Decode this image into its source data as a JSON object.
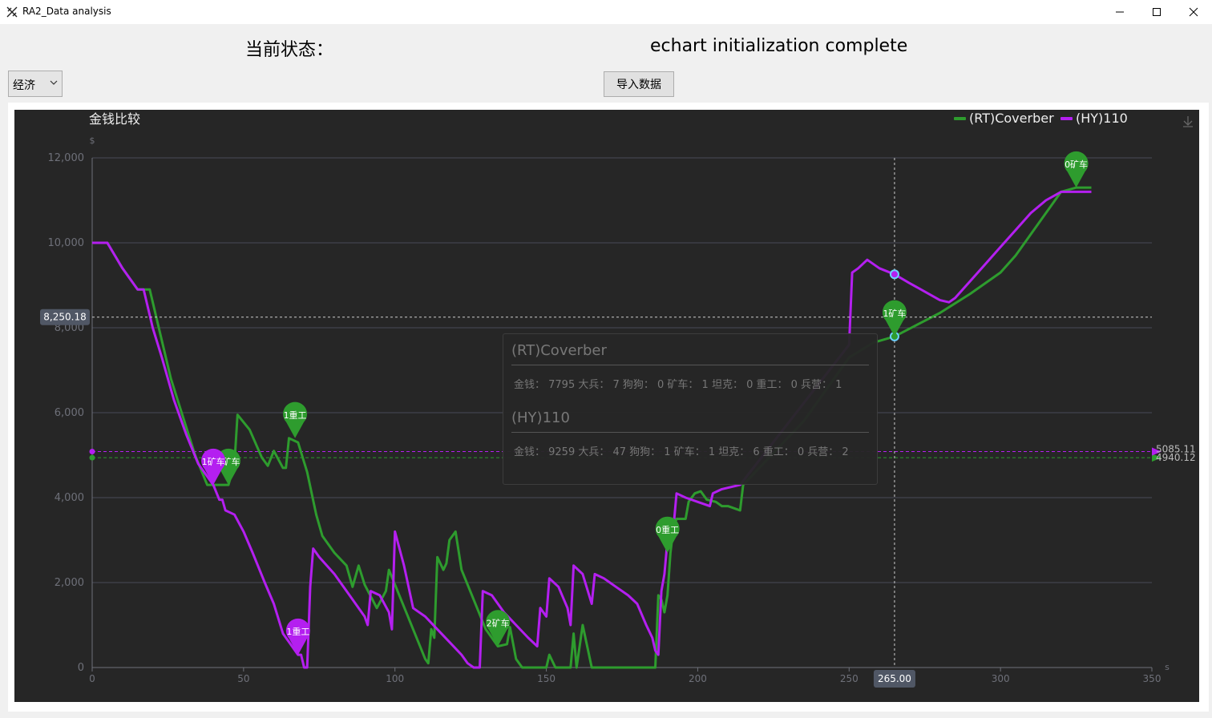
{
  "window": {
    "title": "RA2_Data analysis"
  },
  "status": {
    "label": "当前状态：",
    "text": "echart initialization complete"
  },
  "controls": {
    "select_value": "经济",
    "import_label": "导入数据"
  },
  "colors": {
    "green": "#2e9c2e",
    "purple": "#b41ff0",
    "background": "#262626"
  },
  "chart_data": {
    "type": "line",
    "title": "金钱比较",
    "ylabel": "$",
    "xlabel": "s",
    "xlim": [
      0,
      350
    ],
    "ylim": [
      0,
      12000
    ],
    "xticks": [
      0,
      50,
      100,
      150,
      200,
      250,
      300,
      350
    ],
    "yticks": [
      0,
      2000,
      4000,
      6000,
      8000,
      10000,
      12000
    ],
    "x_tick_labels": [
      "0",
      "50",
      "100",
      "150",
      "200",
      "250",
      "300",
      "350"
    ],
    "y_tick_labels": [
      "0",
      "2,000",
      "4,000",
      "6,000",
      "8,000",
      "10,000",
      "12,000"
    ],
    "legend_position": "top-right",
    "series": [
      {
        "name": "(RT)Coverber",
        "color": "#2e9c2e",
        "points": [
          [
            0,
            10000
          ],
          [
            5,
            10000
          ],
          [
            10,
            9400
          ],
          [
            15,
            8900
          ],
          [
            19,
            8900
          ],
          [
            22,
            8000
          ],
          [
            26,
            6800
          ],
          [
            30,
            5900
          ],
          [
            34,
            5000
          ],
          [
            38,
            4300
          ],
          [
            40,
            4300
          ],
          [
            45,
            4300
          ],
          [
            47,
            4800
          ],
          [
            48,
            5950
          ],
          [
            52,
            5600
          ],
          [
            56,
            4950
          ],
          [
            58,
            4750
          ],
          [
            60,
            5100
          ],
          [
            63,
            4700
          ],
          [
            64,
            4700
          ],
          [
            65,
            5400
          ],
          [
            68,
            5300
          ],
          [
            71,
            4600
          ],
          [
            74,
            3600
          ],
          [
            76,
            3100
          ],
          [
            80,
            2700
          ],
          [
            84,
            2400
          ],
          [
            86,
            1900
          ],
          [
            88,
            2400
          ],
          [
            90,
            1950
          ],
          [
            94,
            1400
          ],
          [
            97,
            1800
          ],
          [
            98,
            2300
          ],
          [
            102,
            1600
          ],
          [
            106,
            900
          ],
          [
            110,
            200
          ],
          [
            111,
            100
          ],
          [
            112,
            900
          ],
          [
            113,
            700
          ],
          [
            114,
            2600
          ],
          [
            116,
            2300
          ],
          [
            117,
            2450
          ],
          [
            118,
            3000
          ],
          [
            120,
            3200
          ],
          [
            122,
            2300
          ],
          [
            126,
            1600
          ],
          [
            130,
            900
          ],
          [
            134,
            500
          ],
          [
            137,
            550
          ],
          [
            138,
            950
          ],
          [
            140,
            200
          ],
          [
            142,
            0
          ],
          [
            150,
            0
          ],
          [
            151,
            300
          ],
          [
            153,
            0
          ],
          [
            158,
            0
          ],
          [
            159,
            800
          ],
          [
            160,
            0
          ],
          [
            162,
            1000
          ],
          [
            165,
            0
          ],
          [
            175,
            0
          ],
          [
            185,
            0
          ],
          [
            186,
            0
          ],
          [
            187,
            1700
          ],
          [
            188,
            1600
          ],
          [
            189,
            1300
          ],
          [
            190,
            1700
          ],
          [
            191,
            2700
          ],
          [
            192,
            3300
          ],
          [
            193,
            3500
          ],
          [
            196,
            3500
          ],
          [
            197,
            3900
          ],
          [
            199,
            4100
          ],
          [
            201,
            4150
          ],
          [
            203,
            3950
          ],
          [
            206,
            3900
          ],
          [
            208,
            3800
          ],
          [
            210,
            3800
          ],
          [
            214,
            3700
          ],
          [
            215,
            4300
          ],
          [
            235,
            5800
          ],
          [
            250,
            7300
          ],
          [
            258,
            7650
          ],
          [
            265,
            7795
          ],
          [
            280,
            8350
          ],
          [
            290,
            8800
          ],
          [
            300,
            9300
          ],
          [
            305,
            9700
          ],
          [
            310,
            10200
          ],
          [
            315,
            10700
          ],
          [
            320,
            11200
          ],
          [
            325,
            11300
          ],
          [
            330,
            11300
          ]
        ],
        "markers": [
          {
            "x": 45,
            "y": 4300,
            "label": "1矿车"
          },
          {
            "x": 67,
            "y": 5400,
            "label": "1重工"
          },
          {
            "x": 134,
            "y": 500,
            "label": "2矿车"
          },
          {
            "x": 190,
            "y": 2700,
            "label": "0重工"
          },
          {
            "x": 265,
            "y": 7795,
            "label": "1矿车"
          },
          {
            "x": 325,
            "y": 11300,
            "label": "0矿车"
          }
        ],
        "average": 4940.12,
        "average_label": "4940.12"
      },
      {
        "name": "(HY)110",
        "color": "#b41ff0",
        "points": [
          [
            0,
            10000
          ],
          [
            5,
            10000
          ],
          [
            10,
            9400
          ],
          [
            15,
            8900
          ],
          [
            17,
            8900
          ],
          [
            20,
            8000
          ],
          [
            23,
            7300
          ],
          [
            27,
            6300
          ],
          [
            31,
            5500
          ],
          [
            35,
            4800
          ],
          [
            38,
            4500
          ],
          [
            40,
            4300
          ],
          [
            42,
            3950
          ],
          [
            43,
            3950
          ],
          [
            44,
            3700
          ],
          [
            47,
            3600
          ],
          [
            50,
            3200
          ],
          [
            53,
            2700
          ],
          [
            57,
            2000
          ],
          [
            60,
            1500
          ],
          [
            63,
            800
          ],
          [
            66,
            500
          ],
          [
            68,
            300
          ],
          [
            69,
            300
          ],
          [
            70,
            0
          ],
          [
            71,
            0
          ],
          [
            72,
            1900
          ],
          [
            73,
            2800
          ],
          [
            75,
            2600
          ],
          [
            80,
            2200
          ],
          [
            85,
            1700
          ],
          [
            90,
            1200
          ],
          [
            91,
            1000
          ],
          [
            92,
            1800
          ],
          [
            95,
            1700
          ],
          [
            98,
            1300
          ],
          [
            99,
            900
          ],
          [
            100,
            3200
          ],
          [
            103,
            2400
          ],
          [
            106,
            1400
          ],
          [
            110,
            1200
          ],
          [
            114,
            900
          ],
          [
            118,
            600
          ],
          [
            122,
            300
          ],
          [
            124,
            100
          ],
          [
            126,
            0
          ],
          [
            128,
            0
          ],
          [
            129,
            1800
          ],
          [
            132,
            1700
          ],
          [
            136,
            1300
          ],
          [
            140,
            1000
          ],
          [
            144,
            700
          ],
          [
            147,
            500
          ],
          [
            148,
            1400
          ],
          [
            150,
            1200
          ],
          [
            151,
            2100
          ],
          [
            154,
            1900
          ],
          [
            157,
            1400
          ],
          [
            158,
            1000
          ],
          [
            159,
            2400
          ],
          [
            162,
            2200
          ],
          [
            165,
            1500
          ],
          [
            166,
            2200
          ],
          [
            169,
            2100
          ],
          [
            173,
            1900
          ],
          [
            177,
            1700
          ],
          [
            180,
            1500
          ],
          [
            183,
            1000
          ],
          [
            185,
            700
          ],
          [
            186,
            400
          ],
          [
            187,
            300
          ],
          [
            188,
            1800
          ],
          [
            189,
            2200
          ],
          [
            190,
            3000
          ],
          [
            192,
            3300
          ],
          [
            193,
            4100
          ],
          [
            196,
            4000
          ],
          [
            200,
            3900
          ],
          [
            204,
            3800
          ],
          [
            205,
            4100
          ],
          [
            208,
            4200
          ],
          [
            214,
            4300
          ],
          [
            250,
            7600
          ],
          [
            251,
            9300
          ],
          [
            253,
            9400
          ],
          [
            256,
            9600
          ],
          [
            260,
            9400
          ],
          [
            265,
            9259
          ],
          [
            270,
            9050
          ],
          [
            275,
            8850
          ],
          [
            280,
            8650
          ],
          [
            283,
            8600
          ],
          [
            285,
            8700
          ],
          [
            290,
            9100
          ],
          [
            295,
            9500
          ],
          [
            300,
            9900
          ],
          [
            305,
            10300
          ],
          [
            310,
            10700
          ],
          [
            315,
            11000
          ],
          [
            320,
            11200
          ],
          [
            325,
            11200
          ],
          [
            330,
            11200
          ]
        ],
        "markers": [
          {
            "x": 40,
            "y": 4300,
            "label": "1矿车"
          },
          {
            "x": 68,
            "y": 300,
            "label": "1重工"
          }
        ],
        "average": 5085.11,
        "average_label": "5085.11"
      }
    ],
    "crosshair": {
      "x": 265,
      "y": 8250.18,
      "x_label": "265.00",
      "y_label": "8,250.18"
    }
  },
  "tooltip": {
    "entries": [
      {
        "name": "(RT)Coverber",
        "detail": "金钱：  7795 大兵：  7 狗狗：  0 矿车：  1 坦克：  0 重工：  0 兵营：  1"
      },
      {
        "name": "(HY)110",
        "detail": "金钱：  9259 大兵：  47 狗狗：  1 矿车：  1 坦克：  6 重工：  0 兵营：  2"
      }
    ]
  }
}
